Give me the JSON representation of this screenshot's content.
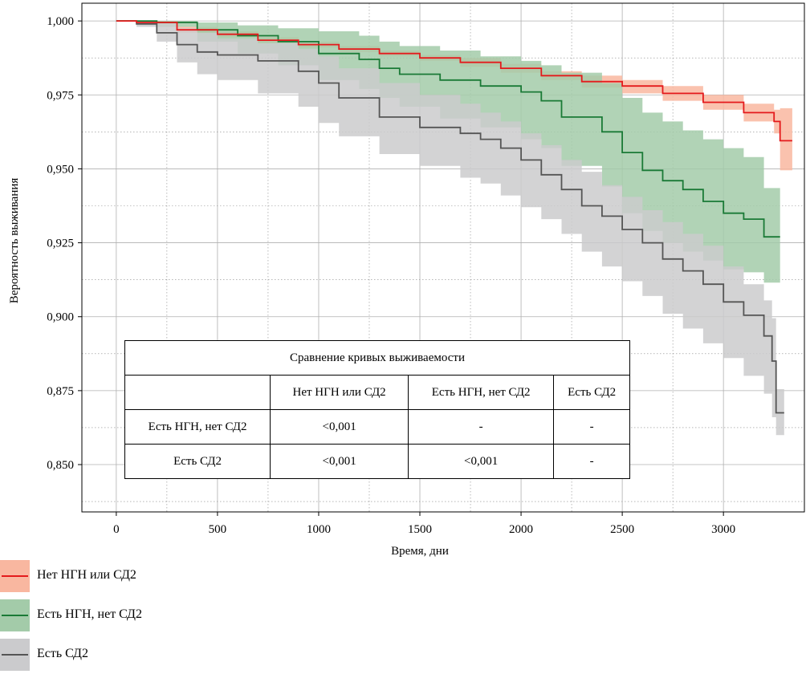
{
  "chart_data": {
    "type": "line",
    "xlabel": "Время, дни",
    "ylabel": "Вероятность выживания",
    "xlim": [
      -170,
      3400
    ],
    "ylim": [
      0.834,
      1.006
    ],
    "x_ticks": [
      0,
      500,
      1000,
      1500,
      2000,
      2500,
      3000
    ],
    "x_tick_labels": [
      "0",
      "500",
      "1000",
      "1500",
      "2000",
      "2500",
      "3000"
    ],
    "y_ticks": [
      0.85,
      0.875,
      0.9,
      0.925,
      0.95,
      0.975,
      1.0
    ],
    "y_tick_labels": [
      "0,850",
      "0,875",
      "0,900",
      "0,925",
      "0,950",
      "0,975",
      "1,000"
    ],
    "grid": true,
    "legend_position": "bottom-left",
    "series": [
      {
        "name": "Нет НГН или СД2",
        "color": "#e41a1c",
        "band_color": "#f9b7a0",
        "x": [
          0,
          100,
          300,
          500,
          700,
          900,
          1100,
          1300,
          1500,
          1700,
          1900,
          2100,
          2300,
          2500,
          2700,
          2900,
          3100,
          3250,
          3280,
          3340
        ],
        "y": [
          1.0,
          0.9995,
          0.997,
          0.9955,
          0.9935,
          0.992,
          0.9905,
          0.989,
          0.9875,
          0.986,
          0.984,
          0.9815,
          0.9795,
          0.978,
          0.9755,
          0.9725,
          0.969,
          0.966,
          0.9595,
          0.9595
        ],
        "lower": [
          1.0,
          0.999,
          0.996,
          0.9945,
          0.9925,
          0.991,
          0.9895,
          0.988,
          0.9865,
          0.9845,
          0.9825,
          0.98,
          0.9775,
          0.9755,
          0.973,
          0.97,
          0.966,
          0.962,
          0.9495,
          0.9495
        ],
        "upper": [
          1.0,
          1.0,
          0.998,
          0.9965,
          0.9945,
          0.993,
          0.9915,
          0.99,
          0.9885,
          0.9875,
          0.9855,
          0.983,
          0.9815,
          0.98,
          0.978,
          0.975,
          0.972,
          0.97,
          0.9705,
          0.9705
        ]
      },
      {
        "name": "Есть НГН, нет СД2",
        "color": "#1a7a36",
        "band_color": "#a3cba9",
        "x": [
          0,
          200,
          400,
          600,
          800,
          1000,
          1200,
          1300,
          1400,
          1600,
          1800,
          2000,
          2100,
          2200,
          2400,
          2500,
          2600,
          2700,
          2800,
          2900,
          3000,
          3100,
          3200,
          3280
        ],
        "y": [
          1.0,
          0.9995,
          0.997,
          0.995,
          0.993,
          0.989,
          0.987,
          0.984,
          0.982,
          0.98,
          0.978,
          0.976,
          0.973,
          0.9675,
          0.9625,
          0.9555,
          0.9495,
          0.946,
          0.943,
          0.939,
          0.935,
          0.933,
          0.927,
          0.927
        ],
        "lower": [
          1.0,
          0.998,
          0.993,
          0.989,
          0.985,
          0.98,
          0.977,
          0.974,
          0.971,
          0.967,
          0.964,
          0.96,
          0.957,
          0.951,
          0.944,
          0.935,
          0.929,
          0.925,
          0.922,
          0.919,
          0.916,
          0.915,
          0.9115,
          0.9115
        ],
        "upper": [
          1.0,
          1.0,
          0.9995,
          0.9985,
          0.9975,
          0.9965,
          0.995,
          0.993,
          0.9915,
          0.99,
          0.988,
          0.9865,
          0.985,
          0.9825,
          0.979,
          0.974,
          0.969,
          0.966,
          0.963,
          0.96,
          0.957,
          0.954,
          0.9435,
          0.9435
        ]
      },
      {
        "name": "Есть СД2",
        "color": "#555555",
        "band_color": "#cbcbcd",
        "x": [
          0,
          100,
          200,
          300,
          400,
          500,
          700,
          900,
          1000,
          1100,
          1300,
          1500,
          1700,
          1800,
          1900,
          2000,
          2100,
          2200,
          2300,
          2400,
          2500,
          2600,
          2700,
          2800,
          2900,
          3000,
          3100,
          3200,
          3240,
          3260,
          3300
        ],
        "y": [
          1.0,
          0.999,
          0.996,
          0.992,
          0.9895,
          0.9885,
          0.9865,
          0.983,
          0.979,
          0.974,
          0.9675,
          0.964,
          0.962,
          0.96,
          0.957,
          0.953,
          0.948,
          0.943,
          0.9375,
          0.934,
          0.9295,
          0.925,
          0.9195,
          0.9155,
          0.911,
          0.905,
          0.9005,
          0.8935,
          0.885,
          0.8675,
          0.8675
        ],
        "lower": [
          1.0,
          0.998,
          0.993,
          0.986,
          0.982,
          0.98,
          0.9755,
          0.971,
          0.9655,
          0.961,
          0.955,
          0.951,
          0.947,
          0.945,
          0.941,
          0.937,
          0.933,
          0.928,
          0.922,
          0.917,
          0.912,
          0.907,
          0.901,
          0.896,
          0.891,
          0.886,
          0.88,
          0.874,
          0.866,
          0.86,
          0.86
        ],
        "upper": [
          1.0,
          1.0,
          0.9995,
          0.9975,
          0.996,
          0.994,
          0.9925,
          0.9905,
          0.988,
          0.984,
          0.979,
          0.975,
          0.972,
          0.969,
          0.966,
          0.962,
          0.958,
          0.953,
          0.949,
          0.9445,
          0.9405,
          0.936,
          0.932,
          0.928,
          0.924,
          0.917,
          0.911,
          0.9055,
          0.8995,
          0.8755,
          0.8755
        ]
      }
    ],
    "table": {
      "title": "Сравнение кривых выживаемости",
      "columns": [
        "",
        "Нет НГН или СД2",
        "Есть НГН, нет СД2",
        "Есть СД2"
      ],
      "rows": [
        [
          "Есть НГН, нет СД2",
          "<0,001",
          "-",
          "-"
        ],
        [
          "Есть СД2",
          "<0,001",
          "<0,001",
          "-"
        ]
      ]
    }
  }
}
